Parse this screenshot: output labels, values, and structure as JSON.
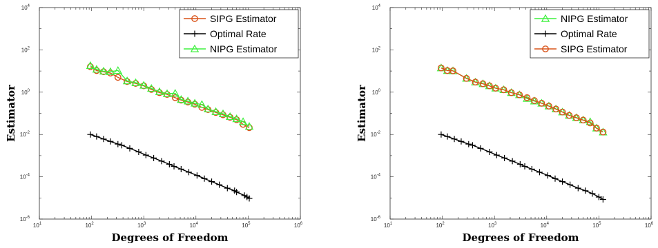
{
  "chart_data": [
    {
      "type": "line",
      "title": "",
      "xlabel": "Degrees of Freedom",
      "ylabel": "Estimator",
      "xscale": "log",
      "yscale": "log",
      "xlim": [
        10,
        1000000
      ],
      "ylim": [
        1e-06,
        10000
      ],
      "grid": false,
      "legend_position": "top-right",
      "x_ticks": [
        {
          "value": 10,
          "base": "10",
          "exp": "1"
        },
        {
          "value": 100,
          "base": "10",
          "exp": "2"
        },
        {
          "value": 1000,
          "base": "10",
          "exp": "3"
        },
        {
          "value": 10000,
          "base": "10",
          "exp": "4"
        },
        {
          "value": 100000,
          "base": "10",
          "exp": "5"
        },
        {
          "value": 1000000,
          "base": "10",
          "exp": "6"
        }
      ],
      "y_ticks": [
        {
          "value": 1e-06,
          "base": "10",
          "exp": "-6"
        },
        {
          "value": 0.0001,
          "base": "10",
          "exp": "-4"
        },
        {
          "value": 0.01,
          "base": "10",
          "exp": "-2"
        },
        {
          "value": 1,
          "base": "10",
          "exp": "0"
        },
        {
          "value": 100,
          "base": "10",
          "exp": "2"
        },
        {
          "value": 10000,
          "base": "10",
          "exp": "4"
        }
      ],
      "series": [
        {
          "name": "SIPG Estimator",
          "color": "#d95319",
          "marker": "circle",
          "x": [
            95,
            125,
            170,
            230,
            320,
            480,
            700,
            1000,
            1400,
            2000,
            2800,
            4000,
            5200,
            7000,
            9500,
            13000,
            17000,
            24000,
            33000,
            45000,
            60000,
            80000,
            105000
          ],
          "y": [
            16,
            10.5,
            9.2,
            8.0,
            5.0,
            3.2,
            2.6,
            2.0,
            1.35,
            0.95,
            0.78,
            0.55,
            0.42,
            0.34,
            0.27,
            0.19,
            0.15,
            0.11,
            0.085,
            0.065,
            0.05,
            0.03,
            0.021
          ]
        },
        {
          "name": "Optimal Rate",
          "color": "#000000",
          "marker": "plus",
          "x": [
            95,
            125,
            170,
            230,
            320,
            380,
            540,
            800,
            1100,
            1550,
            2200,
            3100,
            3800,
            5200,
            7300,
            10500,
            14500,
            20000,
            28000,
            40000,
            55000,
            60000,
            85000,
            95000,
            105000
          ],
          "y": [
            0.01,
            0.008,
            0.0061,
            0.0047,
            0.0035,
            0.0031,
            0.0022,
            0.0015,
            0.00106,
            0.00077,
            0.00055,
            0.00039,
            0.00031,
            0.00023,
            0.000165,
            0.000115,
            8.2e-05,
            5.9e-05,
            4.2e-05,
            2.9e-05,
            2.2e-05,
            1.9e-05,
            1.3e-05,
            1.1e-05,
            9.5e-06
          ]
        },
        {
          "name": "NIPG Estimator",
          "color": "#3ef03e",
          "marker": "triangle",
          "x": [
            95,
            125,
            170,
            230,
            320,
            480,
            700,
            1000,
            1400,
            2000,
            2800,
            4000,
            5200,
            7000,
            9500,
            13000,
            17000,
            24000,
            33000,
            45000,
            60000,
            80000,
            105000
          ],
          "y": [
            18,
            12,
            9.8,
            9.3,
            10.5,
            3.4,
            2.8,
            2.1,
            1.5,
            1.05,
            0.85,
            0.88,
            0.45,
            0.38,
            0.3,
            0.26,
            0.16,
            0.12,
            0.095,
            0.07,
            0.055,
            0.04,
            0.024
          ]
        }
      ]
    },
    {
      "type": "line",
      "title": "",
      "xlabel": "Degrees of Freedom",
      "ylabel": "Estimator",
      "xscale": "log",
      "yscale": "log",
      "xlim": [
        10,
        1000000
      ],
      "ylim": [
        1e-06,
        10000
      ],
      "grid": false,
      "legend_position": "top-right",
      "x_ticks": [
        {
          "value": 10,
          "base": "10",
          "exp": "1"
        },
        {
          "value": 100,
          "base": "10",
          "exp": "2"
        },
        {
          "value": 1000,
          "base": "10",
          "exp": "3"
        },
        {
          "value": 10000,
          "base": "10",
          "exp": "4"
        },
        {
          "value": 100000,
          "base": "10",
          "exp": "5"
        },
        {
          "value": 1000000,
          "base": "10",
          "exp": "6"
        }
      ],
      "y_ticks": [
        {
          "value": 1e-06,
          "base": "10",
          "exp": "-6"
        },
        {
          "value": 0.0001,
          "base": "10",
          "exp": "-4"
        },
        {
          "value": 0.01,
          "base": "10",
          "exp": "-2"
        },
        {
          "value": 1,
          "base": "10",
          "exp": "0"
        },
        {
          "value": 100,
          "base": "10",
          "exp": "2"
        },
        {
          "value": 10000,
          "base": "10",
          "exp": "4"
        }
      ],
      "series": [
        {
          "name": "NIPG Estimator",
          "color": "#3ef03e",
          "marker": "triangle",
          "x": [
            95,
            125,
            160,
            290,
            430,
            600,
            800,
            1050,
            1500,
            2100,
            3000,
            4200,
            5800,
            8000,
            11000,
            15000,
            20000,
            27000,
            37000,
            50000,
            68000,
            90000,
            120000
          ],
          "y": [
            14,
            10.5,
            10.2,
            4.5,
            3.0,
            2.5,
            2.0,
            1.55,
            1.3,
            0.95,
            0.75,
            0.5,
            0.38,
            0.3,
            0.22,
            0.16,
            0.115,
            0.08,
            0.062,
            0.048,
            0.04,
            0.02,
            0.013
          ]
        },
        {
          "name": "Optimal Rate",
          "color": "#000000",
          "marker": "plus",
          "x": [
            95,
            125,
            170,
            230,
            320,
            380,
            540,
            800,
            1100,
            1550,
            2200,
            3100,
            3800,
            5200,
            7300,
            10500,
            14500,
            20000,
            28000,
            40000,
            55000,
            75000,
            100000,
            120000
          ],
          "y": [
            0.01,
            0.008,
            0.0061,
            0.0047,
            0.0035,
            0.0031,
            0.0022,
            0.0015,
            0.00106,
            0.00077,
            0.00055,
            0.00039,
            0.00031,
            0.00023,
            0.000165,
            0.000115,
            8.2e-05,
            5.9e-05,
            4.2e-05,
            2.9e-05,
            2.2e-05,
            1.6e-05,
            1.1e-05,
            8.5e-06
          ]
        },
        {
          "name": "SIPG Estimator",
          "color": "#d95319",
          "marker": "circle",
          "x": [
            95,
            125,
            160,
            290,
            430,
            600,
            800,
            1050,
            1500,
            2100,
            3000,
            4200,
            5800,
            8000,
            11000,
            15000,
            20000,
            27000,
            37000,
            50000,
            68000,
            90000,
            120000
          ],
          "y": [
            14,
            10.5,
            10.2,
            4.5,
            3.0,
            2.5,
            2.0,
            1.55,
            1.3,
            0.95,
            0.75,
            0.55,
            0.4,
            0.3,
            0.22,
            0.16,
            0.115,
            0.08,
            0.062,
            0.048,
            0.035,
            0.02,
            0.013
          ]
        }
      ]
    }
  ]
}
